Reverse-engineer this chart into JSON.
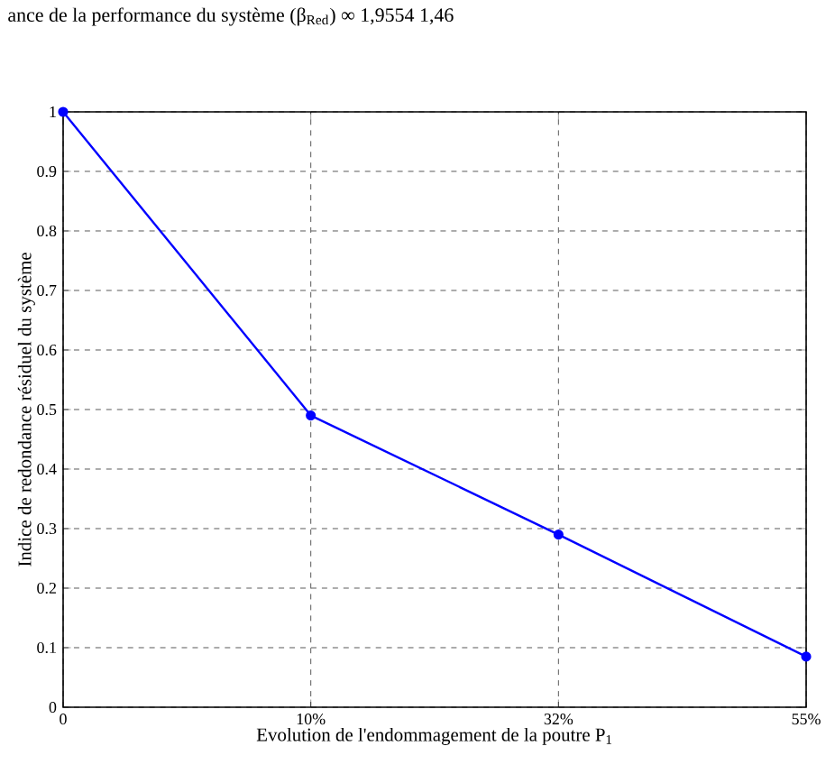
{
  "chart_data": {
    "type": "line",
    "xlabel": "Evolution de l'endommagement de la poutre P$_{1}$",
    "ylabel": "Indice de redondance résiduel du système",
    "categories": [
      "0",
      "10%",
      "32%",
      "55%"
    ],
    "series": [
      {
        "color": "#0000ff",
        "values": [
          1,
          0.49,
          0.29,
          0.085
        ]
      }
    ],
    "ylim": [
      0,
      1
    ],
    "yticks": [
      0,
      0.1,
      0.2,
      0.3,
      0.4,
      0.5,
      0.6,
      0.7,
      0.8,
      0.9,
      1
    ],
    "grid": true,
    "marker": "circle",
    "line_style": "solid",
    "annotations": [
      "ance de la performance du système (β$_{Red}$)      ∞      1,9554   1,46"
    ]
  }
}
